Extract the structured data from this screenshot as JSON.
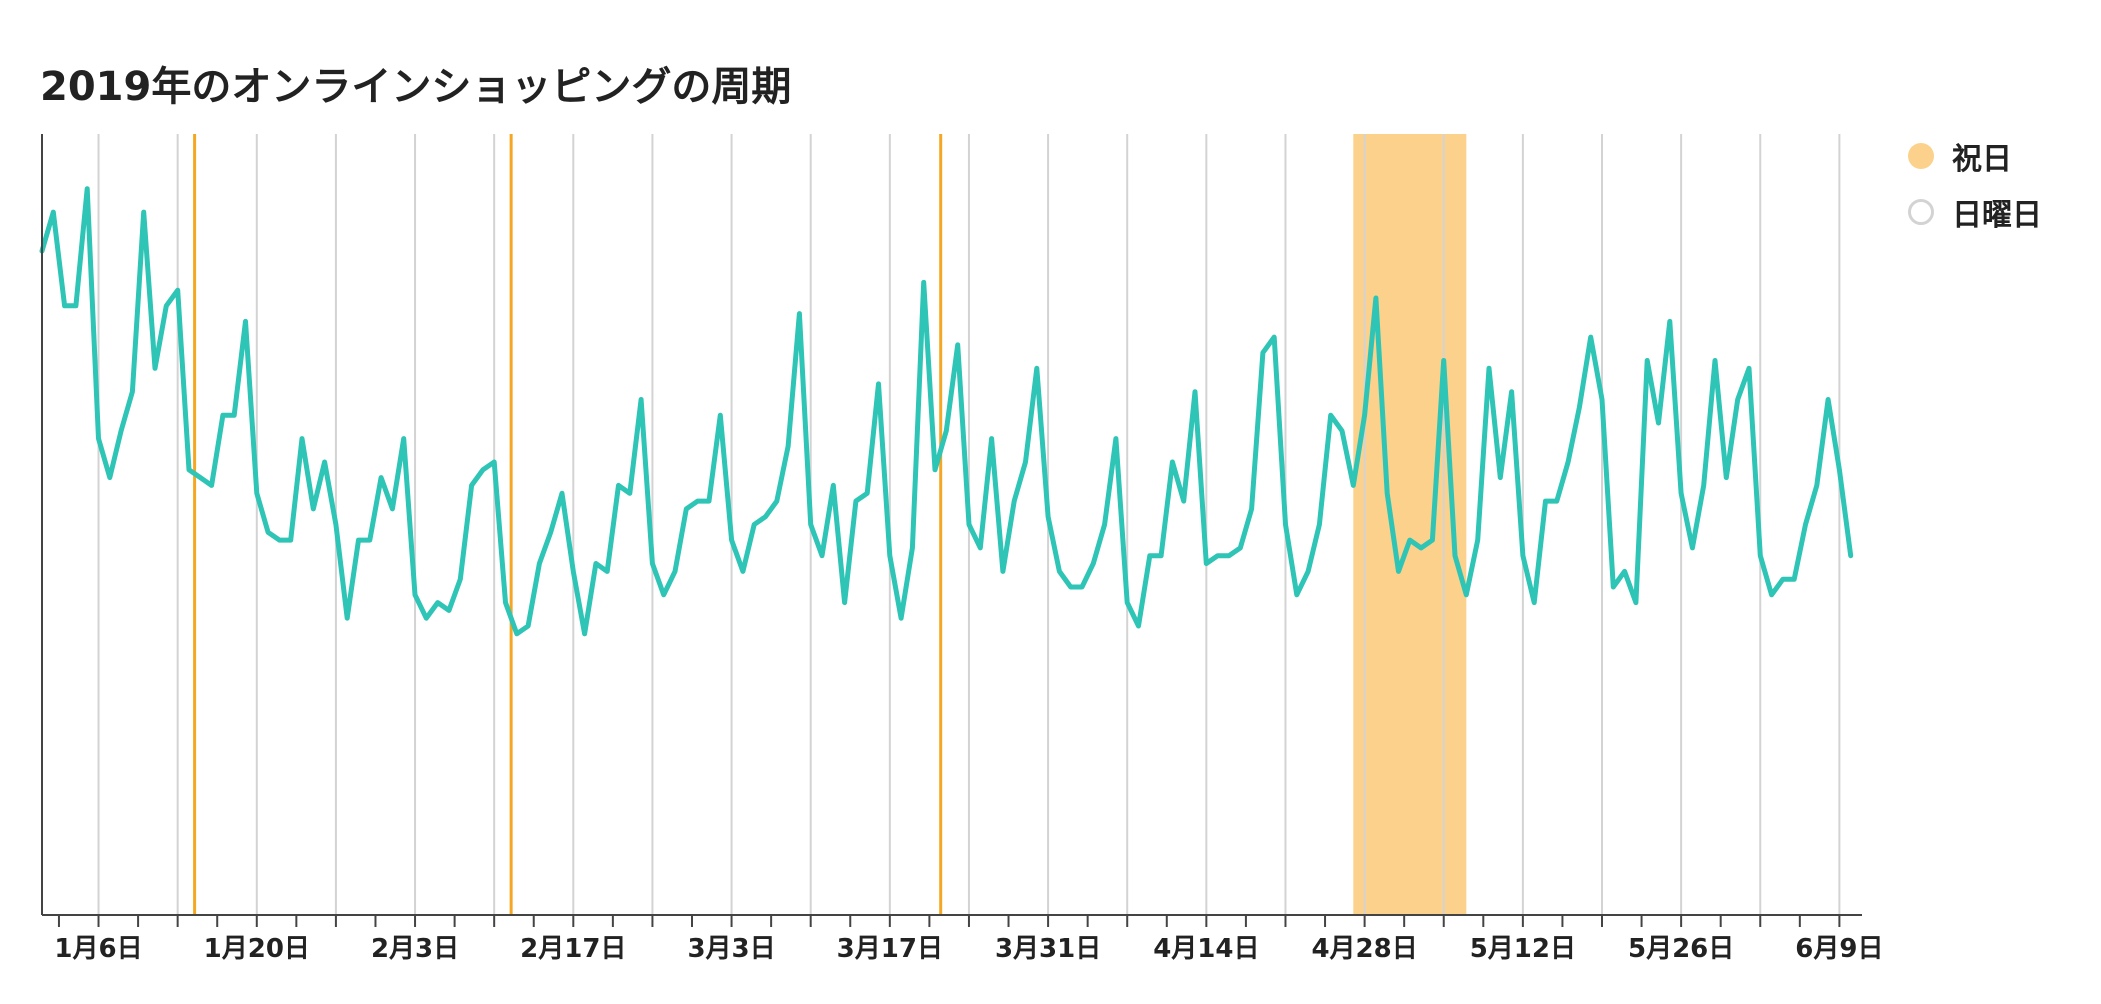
{
  "chart_data": {
    "type": "line",
    "title": "2019年のオンラインショッピングの周期",
    "xlabel": "",
    "ylabel": "",
    "x_range": [
      "2019-01-01",
      "2019-06-11"
    ],
    "x_ticks": [
      "2019-01-06",
      "2019-01-20",
      "2019-02-03",
      "2019-02-17",
      "2019-03-03",
      "2019-03-17",
      "2019-03-31",
      "2019-04-14",
      "2019-04-28",
      "2019-05-12",
      "2019-05-26",
      "2019-06-09"
    ],
    "x_tick_labels": [
      "1月6日",
      "1月20日",
      "2月3日",
      "2月17日",
      "3月3日",
      "3月17日",
      "3月31日",
      "4月14日",
      "4月28日",
      "5月12日",
      "5月26日",
      "6月9日"
    ],
    "ylim": [
      0,
      100
    ],
    "y_axis_labels_shown": false,
    "grid": "vertical lines on Sundays",
    "legend_position": "right",
    "legend": [
      {
        "label": "祝日",
        "color": "#fbd18b",
        "style": "filled"
      },
      {
        "label": "日曜日",
        "color": "#d3d3d3",
        "style": "outline"
      }
    ],
    "holidays": [
      "2019-01-14",
      "2019-02-11",
      "2019-03-21"
    ],
    "holiday_ranges": [
      [
        "2019-04-27",
        "2019-05-06"
      ]
    ],
    "line_color": "#2ec4b6",
    "holiday_color": "#f5a623",
    "series": [
      {
        "name": "",
        "values": [
          85,
          90,
          78,
          78,
          93,
          61,
          56,
          62,
          67,
          90,
          70,
          78,
          80,
          57,
          56,
          55,
          64,
          64,
          76,
          54,
          49,
          48,
          48,
          61,
          52,
          58,
          50,
          38,
          48,
          48,
          56,
          52,
          61,
          41,
          38,
          40,
          39,
          43,
          55,
          57,
          58,
          40,
          36,
          37,
          45,
          49,
          54,
          44,
          36,
          45,
          44,
          55,
          54,
          66,
          45,
          41,
          44,
          52,
          53,
          53,
          64,
          48,
          44,
          50,
          51,
          53,
          60,
          77,
          50,
          46,
          55,
          40,
          53,
          54,
          68,
          46,
          38,
          47,
          81,
          57,
          62,
          73,
          50,
          47,
          61,
          44,
          53,
          58,
          70,
          51,
          44,
          42,
          42,
          45,
          50,
          61,
          40,
          37,
          46,
          46,
          58,
          53,
          67,
          45,
          46,
          46,
          47,
          52,
          72,
          74,
          50,
          41,
          44,
          50,
          64,
          62,
          55,
          64,
          79,
          54,
          44,
          48,
          47,
          48,
          71,
          46,
          41,
          48,
          70,
          56,
          67,
          46,
          40,
          53,
          53,
          58,
          65,
          74,
          66,
          42,
          44,
          40,
          71,
          63,
          76,
          54,
          47,
          55,
          71,
          56,
          66,
          70,
          46,
          41,
          43,
          43,
          50,
          55,
          66,
          57,
          46
        ]
      }
    ]
  }
}
